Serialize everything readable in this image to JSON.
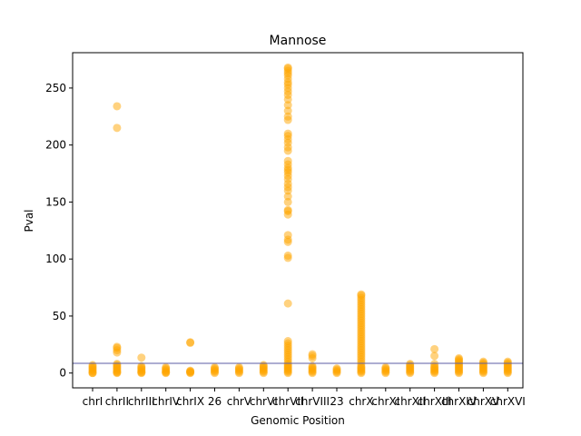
{
  "chart_data": {
    "type": "scatter",
    "title": "Mannose",
    "xlabel": "Genomic Position",
    "ylabel": "Pval",
    "categories": [
      "chrI",
      "chrII",
      "chrIII",
      "chrIV",
      "chrIX",
      "26",
      "chrV",
      "chrVI",
      "chrVII",
      "chrVIII",
      "23",
      "chrX",
      "chrXI",
      "chrXII",
      "chrXIII",
      "chrXIV",
      "chrXV",
      "chrXVI"
    ],
    "ylim": [
      -13,
      281
    ],
    "yticks": [
      0,
      50,
      100,
      150,
      200,
      250
    ],
    "threshold": 8.5,
    "point_color": "#FFA500",
    "line_color": "#5B5EA6",
    "grid": false,
    "legend": "none",
    "series": [
      {
        "values": [
          [
            0,
            0,
            1,
            2,
            3,
            4,
            5,
            6,
            7
          ],
          [
            0,
            0.5,
            1,
            2,
            3,
            4,
            5,
            6,
            7,
            8,
            18,
            20,
            22,
            23,
            215,
            234
          ],
          [
            0,
            0.5,
            1,
            2,
            3,
            4,
            5,
            6,
            13.5
          ],
          [
            0,
            0.5,
            1,
            2,
            3,
            4,
            5
          ],
          [
            0,
            0.5,
            1,
            1.5,
            2,
            26.5,
            27
          ],
          [
            0,
            1,
            2,
            3,
            4,
            5
          ],
          [
            0,
            1,
            2,
            3,
            4,
            5
          ],
          [
            0,
            1,
            2,
            3,
            4,
            5,
            6,
            7
          ],
          [
            0,
            1,
            2,
            3,
            4,
            5,
            6,
            7,
            8,
            10,
            12,
            14,
            16,
            18,
            20,
            22,
            24,
            26,
            28,
            61,
            101,
            103,
            115,
            117,
            121,
            139,
            142,
            143,
            150,
            155,
            160,
            163,
            166,
            170,
            173,
            176,
            178,
            180,
            183,
            186,
            195,
            198,
            202,
            205,
            208,
            210,
            222,
            225,
            230,
            235,
            240,
            244,
            247,
            250,
            253,
            255,
            258,
            261,
            263,
            265,
            267,
            268
          ],
          [
            0,
            1,
            2,
            3,
            4,
            5,
            6,
            13,
            15,
            16.5
          ],
          [
            0,
            1,
            2,
            3,
            4
          ],
          [
            0,
            1,
            2,
            3,
            4,
            5,
            6,
            8,
            10,
            12,
            14,
            16,
            18,
            20,
            22,
            24,
            26,
            28,
            30,
            32,
            34,
            36,
            38,
            40,
            42,
            44,
            46,
            48,
            50,
            52,
            54,
            56,
            58,
            60,
            62,
            64,
            66,
            68,
            69
          ],
          [
            0,
            1,
            2,
            3,
            4,
            5
          ],
          [
            0,
            1,
            2,
            3,
            4,
            5,
            6,
            7,
            8
          ],
          [
            0,
            1,
            2,
            3,
            4,
            5,
            6,
            8,
            15,
            21
          ],
          [
            0,
            1,
            2,
            3,
            4,
            5,
            6,
            7,
            8,
            9,
            10,
            11,
            12,
            13
          ],
          [
            0,
            1,
            2,
            3,
            4,
            5,
            6,
            7,
            8,
            9,
            10
          ],
          [
            0,
            1,
            2,
            3,
            4,
            5,
            6,
            7,
            8,
            9,
            10
          ]
        ]
      }
    ]
  }
}
